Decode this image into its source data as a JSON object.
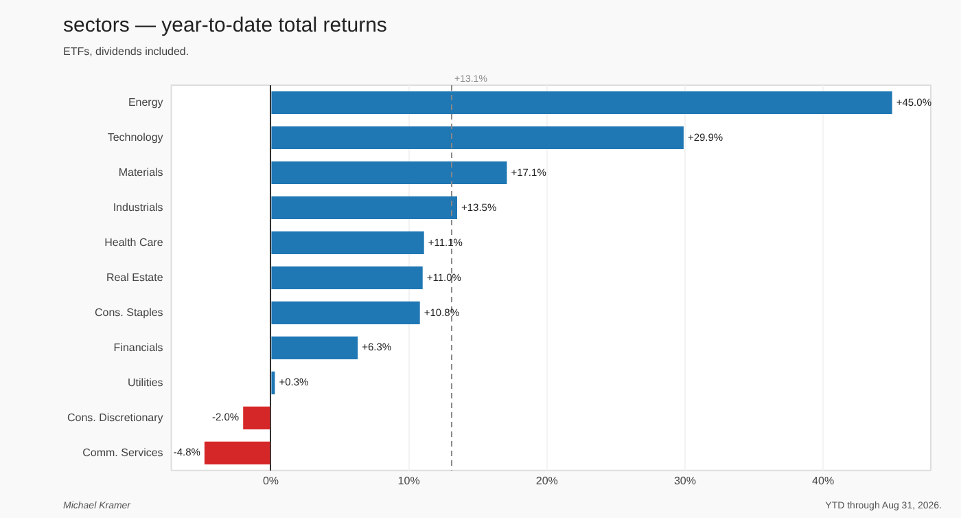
{
  "chart_data": {
    "type": "bar",
    "orientation": "horizontal",
    "title": "sectors — year-to-date total returns",
    "subtitle": "ETFs, dividends included.",
    "categories": [
      "Energy",
      "Technology",
      "Materials",
      "Industrials",
      "Health Care",
      "Real Estate",
      "Cons. Staples",
      "Financials",
      "Utilities",
      "Cons. Discretionary",
      "Comm. Services"
    ],
    "values": [
      45.0,
      29.9,
      17.1,
      13.5,
      11.1,
      11.0,
      10.8,
      6.3,
      0.3,
      -2.0,
      -4.8
    ],
    "value_labels": [
      "+45.0%",
      "+29.9%",
      "+17.1%",
      "+13.5%",
      "+11.1%",
      "+11.0%",
      "+10.8%",
      "+6.3%",
      "+0.3%",
      "-2.0%",
      "-4.8%"
    ],
    "colors": [
      "#1f77b4",
      "#1f77b4",
      "#1f77b4",
      "#1f77b4",
      "#1f77b4",
      "#1f77b4",
      "#1f77b4",
      "#1f77b4",
      "#1f77b4",
      "#d62728",
      "#d62728"
    ],
    "xlim": [
      -7.2,
      47.8
    ],
    "xticks": [
      {
        "value": 0,
        "label": "0%"
      },
      {
        "value": 10,
        "label": "10%"
      },
      {
        "value": 20,
        "label": "20%"
      },
      {
        "value": 30,
        "label": "30%"
      },
      {
        "value": 40,
        "label": "40%"
      }
    ],
    "ref_lines": [
      {
        "axis": "x",
        "value": 13.1,
        "label": "+13.1%",
        "color": "#888888",
        "line_style": "dashed"
      }
    ],
    "grid": "x",
    "legend": false,
    "annotations": [
      "Michael Kramer",
      "YTD through Aug 31, 2026."
    ]
  }
}
